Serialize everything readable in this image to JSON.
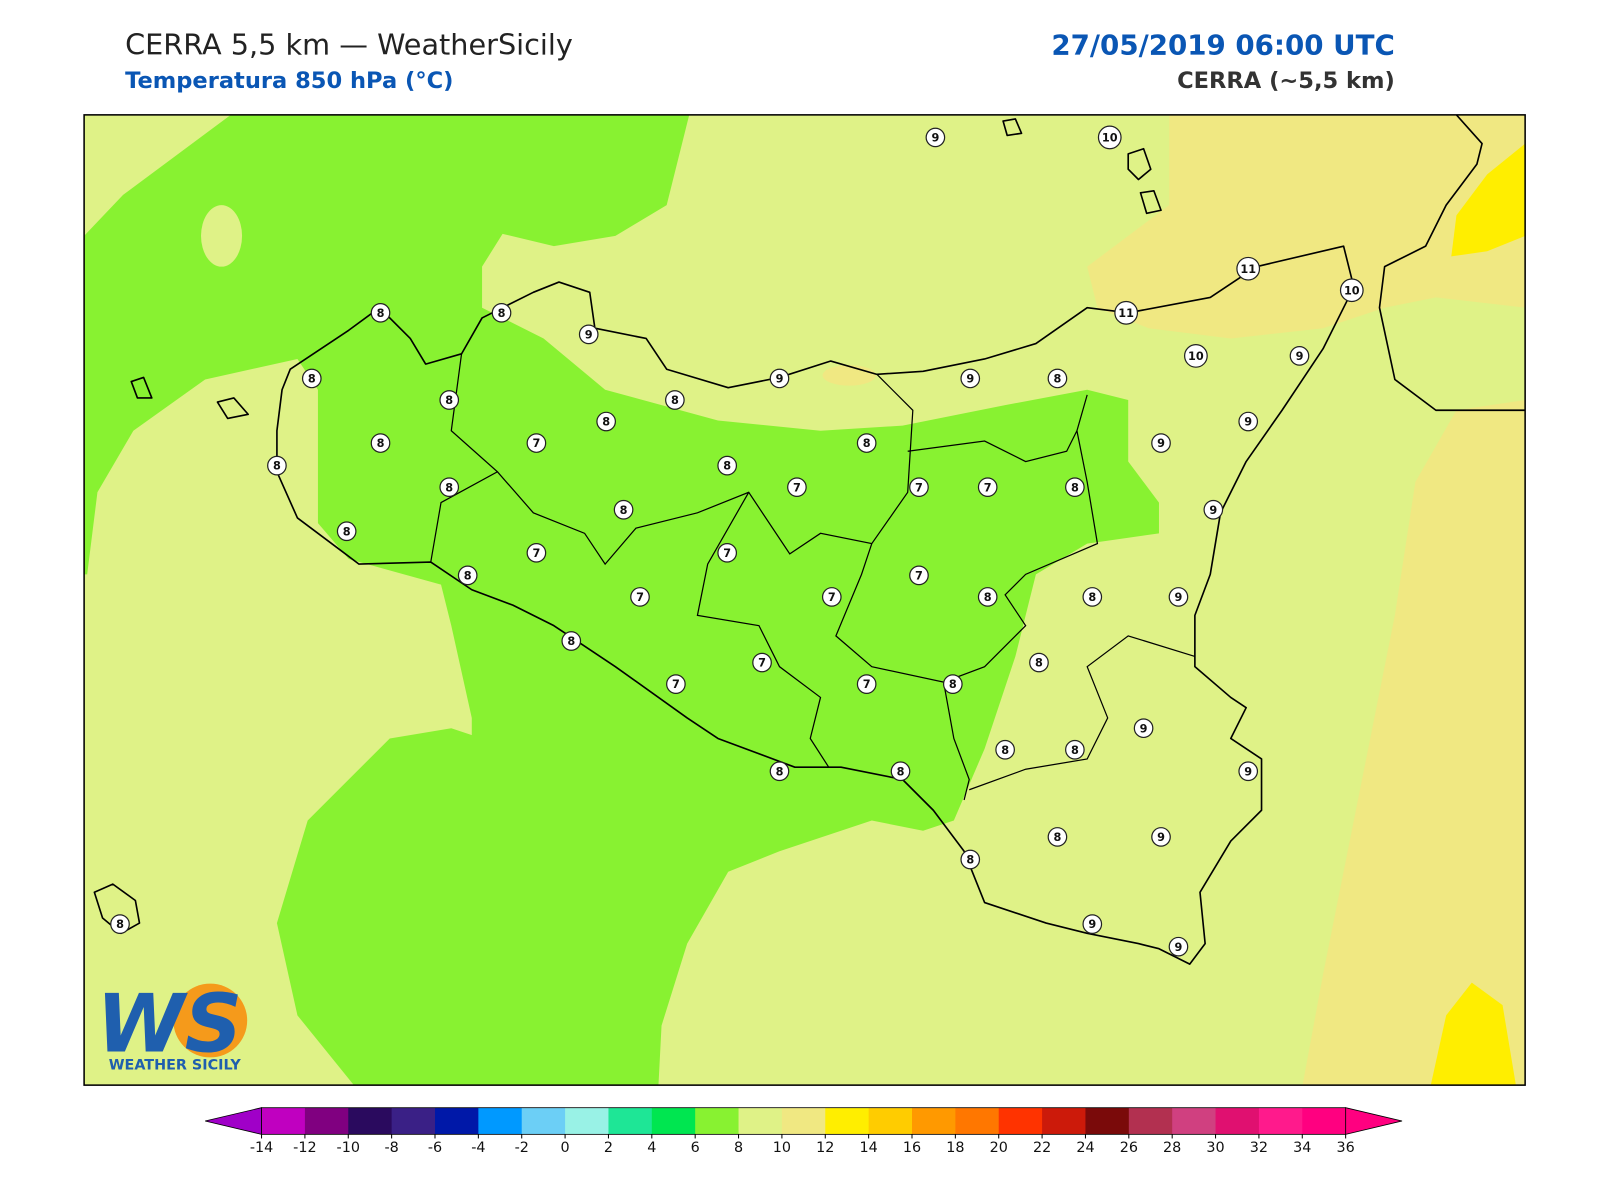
{
  "header": {
    "title": "CERRA 5,5 km — WeatherSicily",
    "subtitle": "Temperatura 850 hPa (°C)",
    "datetime": "27/05/2019 06:00 UTC",
    "model": "CERRA (~5,5 km)"
  },
  "stations": [
    9,
    10,
    8,
    8,
    9,
    11,
    10,
    11,
    10,
    9,
    8,
    9,
    9,
    8,
    8,
    8,
    8,
    9,
    8,
    7,
    8,
    9,
    8,
    8,
    8,
    7,
    7,
    7,
    8,
    8,
    9,
    8,
    7,
    7,
    8,
    7,
    7,
    7,
    8,
    8,
    9,
    8,
    8,
    7,
    7,
    7,
    8,
    9,
    8,
    8,
    9,
    8,
    8,
    8,
    9,
    8,
    9,
    9,
    8
  ],
  "colorbar": {
    "ticks": [
      -14,
      -12,
      -10,
      -8,
      -6,
      -4,
      -2,
      0,
      2,
      4,
      6,
      8,
      10,
      12,
      14,
      16,
      18,
      20,
      22,
      24,
      26,
      28,
      30,
      32,
      34,
      36
    ],
    "colors": [
      "#c000c0",
      "#800080",
      "#2a0a5e",
      "#3a2086",
      "#0018a8",
      "#0099ff",
      "#6ccff6",
      "#99f2e6",
      "#1ee696",
      "#00e650",
      "#88f231",
      "#dff287",
      "#f0e882",
      "#ffee00",
      "#ffcc00",
      "#ff9900",
      "#ff7700",
      "#ff3300",
      "#cc1a0a",
      "#7a0a0a",
      "#b23050",
      "#d04080",
      "#e01070",
      "#ff1a8c",
      "#ff0080"
    ],
    "under": "#a000c8",
    "over": "#ff0080"
  },
  "logo": {
    "text": "WS",
    "caption": "WEATHER SICILY"
  }
}
